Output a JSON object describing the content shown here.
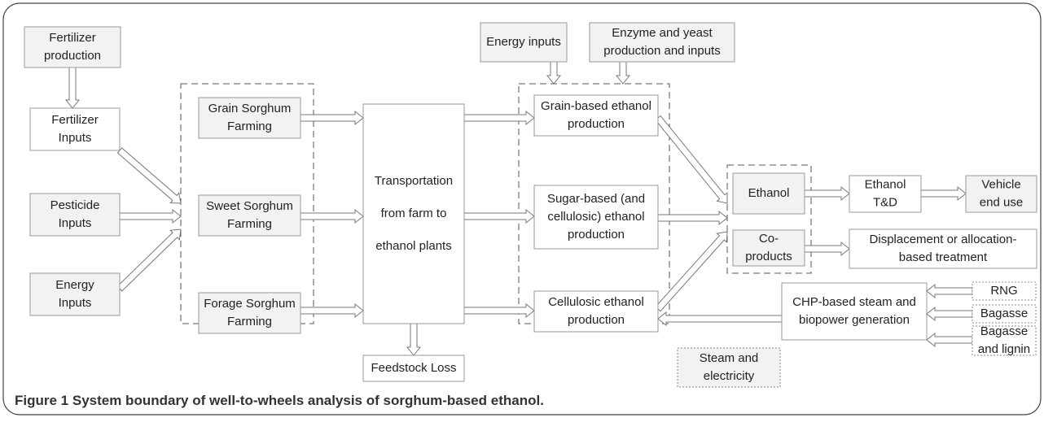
{
  "nodes": [
    {
      "label": [
        "Fertilizer",
        "production"
      ]
    },
    {
      "label": [
        "Fertilizer",
        "Inputs"
      ]
    },
    {
      "label": [
        "Pesticide",
        "Inputs"
      ]
    },
    {
      "label": [
        "Energy",
        "Inputs"
      ]
    },
    {
      "label": [
        "Grain Sorghum",
        "Farming"
      ]
    },
    {
      "label": [
        "Sweet Sorghum",
        "Farming"
      ]
    },
    {
      "label": [
        "Forage Sorghum",
        "Farming"
      ]
    },
    {
      "label": [
        "Transportation",
        "from farm to",
        "ethanol plants"
      ]
    },
    {
      "label": [
        "Feedstock Loss"
      ]
    },
    {
      "label": [
        "Energy inputs"
      ]
    },
    {
      "label": [
        "Enzyme and yeast",
        "production and inputs"
      ]
    },
    {
      "label": [
        "Grain-based ethanol",
        "production"
      ]
    },
    {
      "label": [
        "Sugar-based (and",
        "cellulosic) ethanol",
        "production"
      ]
    },
    {
      "label": [
        "Cellulosic ethanol",
        "production"
      ]
    },
    {
      "label": [
        "Ethanol"
      ]
    },
    {
      "label": [
        "Co-",
        "products"
      ]
    },
    {
      "label": [
        "Ethanol",
        "T&D"
      ]
    },
    {
      "label": [
        "Vehicle",
        "end use"
      ]
    },
    {
      "label": [
        "Displacement or allocation-",
        "based treatment"
      ]
    },
    {
      "label": [
        "CHP-based steam and",
        "biopower generation"
      ]
    },
    {
      "label": [
        "RNG"
      ]
    },
    {
      "label": [
        "Bagasse"
      ]
    },
    {
      "label": [
        "Bagasse",
        "and lignin"
      ]
    },
    {
      "label": [
        "Steam and",
        "electricity"
      ]
    }
  ],
  "caption": {
    "label": "Figure 1",
    "text": "System boundary of well-to-wheels analysis of sorghum-based ethanol."
  }
}
